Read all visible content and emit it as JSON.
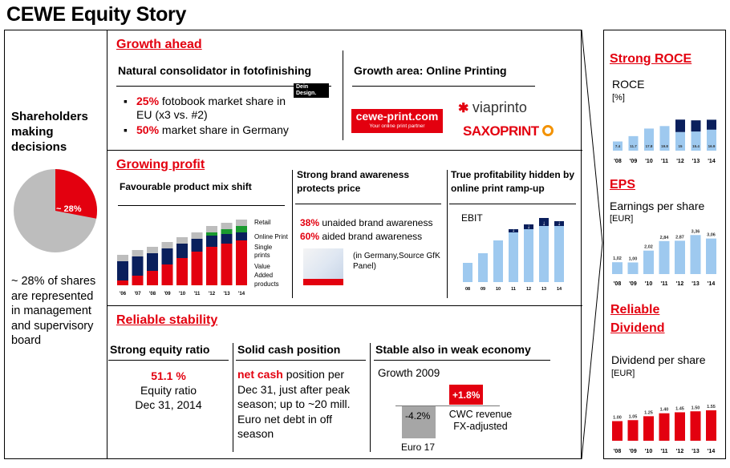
{
  "title": "CEWE Equity Story",
  "left": {
    "heading": "Shareholders making decisions",
    "pie_label": "~ 28%",
    "pie_share": 0.28,
    "text": "~ 28% of shares are represented in management and supervisory board"
  },
  "growth": {
    "title": "Growth ahead",
    "col1_title": "Natural consolidator in fotofinishing",
    "b1_red": "25%",
    "b1_rest": " fotobook market share in EU (x3 vs. #2)",
    "b2_red": "50%",
    "b2_rest": " market share in Germany",
    "dein_logo": "Dein Design.",
    "col2_title": "Growth area: Online Printing",
    "cewe_logo_main": "cewe-print.com",
    "cewe_logo_sub": "Your online print partner",
    "viaprinto": "viaprinto",
    "saxoprint": "SAXOPRINT"
  },
  "profit": {
    "title": "Growing profit",
    "mix_title": "Favourable product mix shift",
    "legend": [
      "Retail",
      "Online Print",
      "Single prints",
      "Value Added products"
    ],
    "brand_title": "Strong brand awareness protects price",
    "brand_l1_red": "38%",
    "brand_l1_rest": " unaided brand awareness",
    "brand_l2_red": "60%",
    "brand_l2_rest": " aided brand awareness",
    "brand_source": "(in Germany,Source GfK Panel)",
    "hidden_title": "True profitability hidden by online print ramp-up",
    "ebit_label": "EBIT"
  },
  "stability": {
    "title": "Reliable stability",
    "col1_title": "Strong equity ratio",
    "ratio_value": "51.1 %",
    "ratio_l2": "Equity ratio",
    "ratio_l3": "Dec 31, 2014",
    "col2_title": "Solid cash position",
    "cash_red": "net cash",
    "cash_rest": " position per Dec 31, just after peak season; up to ~20 mill. Euro net debt in off season",
    "col3_title": "Stable also in weak economy",
    "growth_year": "Growth 2009",
    "neg_value": "-4.2%",
    "pos_value": "+1.8%",
    "cwc_label": "CWC revenue FX-adjusted",
    "euro_label": "Euro 17"
  },
  "right": {
    "roce_title": "Strong ROCE",
    "roce_label": "ROCE",
    "roce_unit": "[%]",
    "eps_title": "EPS",
    "eps_label": "Earnings per share",
    "eps_unit": "[EUR]",
    "div_title": "Reliable Dividend",
    "div_label": "Dividend per share",
    "div_unit": "[EUR]"
  },
  "colors": {
    "red": "#e3000f",
    "navy": "#0a1f5c",
    "light_blue": "#9ec9ef",
    "grey": "#bdbdbd",
    "green": "#1a9a2f"
  },
  "chart_data": [
    {
      "type": "bar",
      "name": "product-mix",
      "categories": [
        "'06",
        "'07",
        "'08",
        "'09",
        "'10",
        "'11",
        "'12",
        "'13",
        "'14"
      ],
      "series": [
        {
          "name": "Value Added products",
          "values": [
            3,
            6,
            9,
            13,
            17,
            21,
            24,
            26,
            28
          ]
        },
        {
          "name": "Single prints",
          "values": [
            12,
            12,
            11,
            10,
            9,
            8,
            7,
            6,
            5
          ]
        },
        {
          "name": "Online Print",
          "values": [
            0,
            0,
            0,
            0,
            0,
            0,
            2,
            3,
            4
          ]
        },
        {
          "name": "Retail",
          "values": [
            4,
            4,
            4,
            4,
            4,
            4,
            4,
            4,
            4
          ]
        }
      ]
    },
    {
      "type": "bar",
      "name": "ebit",
      "categories": [
        "08",
        "09",
        "10",
        "11",
        "12",
        "13",
        "14"
      ],
      "values": [
        12,
        18,
        26,
        31,
        33,
        35,
        35
      ],
      "hidden": [
        0,
        0,
        0,
        2,
        3,
        5,
        3
      ]
    },
    {
      "type": "bar",
      "name": "roce",
      "categories": [
        "'08",
        "'09",
        "'10",
        "'11",
        "'12",
        "'13",
        "'14"
      ],
      "values": [
        7.4,
        11.7,
        17.8,
        19.8,
        15.0,
        15.4,
        16.9
      ],
      "extra": [
        0,
        0,
        0,
        0,
        10,
        9,
        8
      ]
    },
    {
      "type": "bar",
      "name": "eps",
      "categories": [
        "'08",
        "'09",
        "'10",
        "'11",
        "'12",
        "'13",
        "'14"
      ],
      "values": [
        1.02,
        1.0,
        2.02,
        2.84,
        2.87,
        3.36,
        3.06
      ],
      "labels": [
        "1,02",
        "1,00",
        "2,02",
        "2,84",
        "2,87",
        "3,36",
        "3,06"
      ]
    },
    {
      "type": "bar",
      "name": "dividend",
      "categories": [
        "'08",
        "'09",
        "'10",
        "'11",
        "'12",
        "'13",
        "'14"
      ],
      "values": [
        1.0,
        1.05,
        1.25,
        1.4,
        1.45,
        1.5,
        1.55
      ],
      "labels": [
        "1.00",
        "1.05",
        "1.25",
        "1.40",
        "1.45",
        "1.50",
        "1.55"
      ]
    }
  ]
}
